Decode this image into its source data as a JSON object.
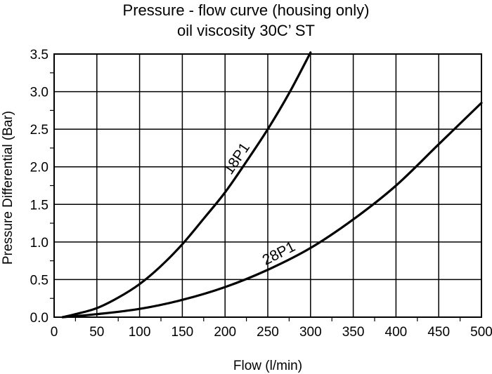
{
  "chart_data": {
    "type": "line",
    "title": "Pressure - flow curve (housing only)",
    "subtitle": "oil viscosity 30C’ ST",
    "xlabel": "Flow (l/min)",
    "ylabel": "Pressure Differential (Bar)",
    "xlim": [
      0,
      500
    ],
    "ylim": [
      0,
      3.5
    ],
    "grid": true,
    "x_ticks": [
      0,
      50,
      100,
      150,
      200,
      250,
      300,
      350,
      400,
      450,
      500
    ],
    "x_tick_labels": [
      "0",
      "50",
      "100",
      "150",
      "200",
      "250",
      "300",
      "350",
      "400",
      "450",
      "500"
    ],
    "y_ticks": [
      0,
      0.5,
      1.0,
      1.5,
      2.0,
      2.5,
      3.0,
      3.5
    ],
    "y_tick_labels": [
      "0.0",
      "0.5",
      "1.0",
      "1.5",
      "2.0",
      "2.5",
      "3.0",
      "3.5"
    ],
    "series": [
      {
        "name": "18P1",
        "x": [
          10,
          25,
          50,
          75,
          100,
          125,
          150,
          175,
          200,
          225,
          250,
          275,
          300
        ],
        "y": [
          0.0,
          0.04,
          0.12,
          0.26,
          0.44,
          0.68,
          0.97,
          1.31,
          1.66,
          2.07,
          2.5,
          2.98,
          3.52
        ]
      },
      {
        "name": "28P1",
        "x": [
          10,
          50,
          100,
          150,
          200,
          250,
          300,
          350,
          400,
          450,
          500
        ],
        "y": [
          0.0,
          0.04,
          0.11,
          0.23,
          0.4,
          0.63,
          0.92,
          1.3,
          1.75,
          2.3,
          2.85
        ]
      }
    ]
  }
}
